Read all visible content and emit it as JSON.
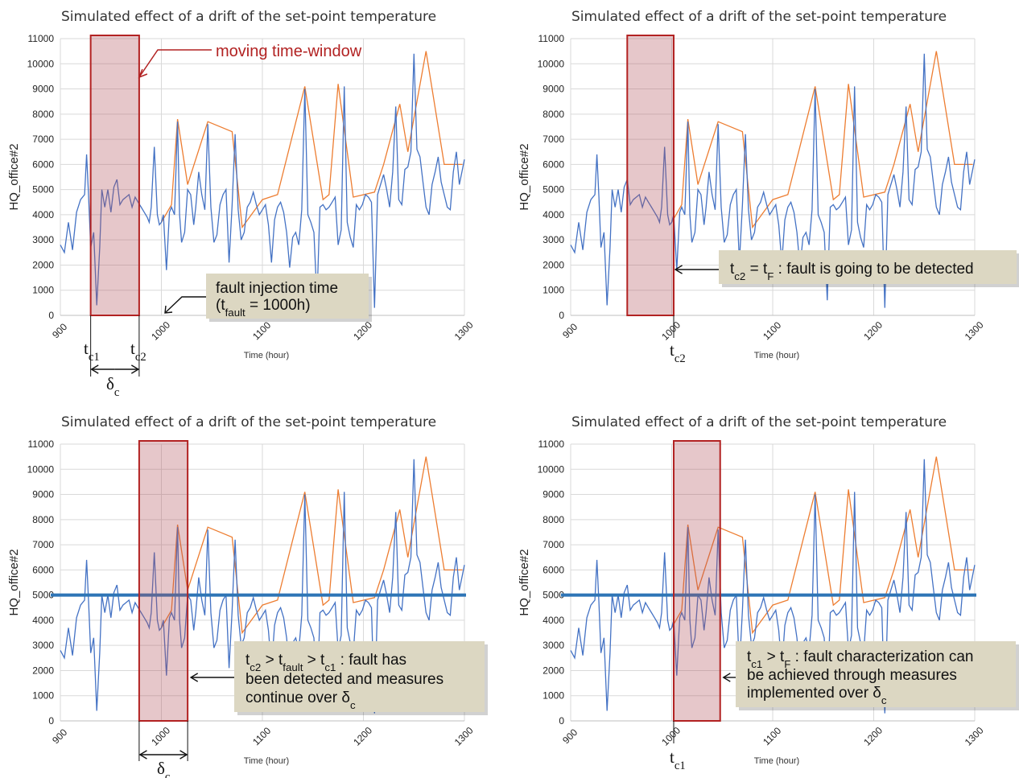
{
  "colors": {
    "baseline": "#4472c4",
    "faulty": "#ed7d31",
    "window_fill": "rgba(178,80,90,0.32)",
    "window_stroke": "#b22222",
    "threshold": "#2e75b6",
    "callout_bg": "#dcd7c2"
  },
  "chart_data": [
    {
      "type": "line",
      "title": "Simulated effect of a drift of the set-point temperature",
      "xlabel": "Time (hour)",
      "ylabel": "HQ_office#2",
      "xlim": [
        900,
        1300
      ],
      "ylim": [
        0,
        11000
      ],
      "x_ticks": [
        "900",
        "1000",
        "1100",
        "1200",
        "1300"
      ],
      "y_ticks": [
        "0",
        "1000",
        "2000",
        "3000",
        "4000",
        "5000",
        "6000",
        "7000",
        "8000",
        "9000",
        "10000",
        "11000"
      ],
      "grid": true,
      "window": [
        930,
        978
      ],
      "threshold": null,
      "series": [
        {
          "x": [
            900,
            904,
            908,
            912,
            916,
            920,
            924,
            926,
            928,
            930,
            933,
            936,
            939,
            941,
            944,
            947,
            950,
            953,
            956,
            959,
            962,
            965,
            968,
            971,
            974,
            977,
            980,
            983,
            986,
            988,
            990,
            993,
            996,
            998,
            1000,
            1002,
            1005,
            1008,
            1010,
            1013,
            1016,
            1018,
            1020,
            1023,
            1026,
            1029,
            1032,
            1034,
            1037,
            1040,
            1043,
            1046,
            1049,
            1052,
            1055,
            1058,
            1061,
            1064,
            1067,
            1070,
            1073,
            1076,
            1079,
            1082,
            1085,
            1088,
            1091,
            1094,
            1097,
            1100,
            1103,
            1106,
            1109,
            1112,
            1115,
            1118,
            1121,
            1124,
            1127,
            1130,
            1133,
            1136,
            1139,
            1142,
            1145,
            1148,
            1151,
            1154,
            1157,
            1160,
            1163,
            1166,
            1169,
            1172,
            1175,
            1178,
            1181,
            1184,
            1187,
            1190,
            1193,
            1196,
            1199,
            1202,
            1205,
            1208,
            1211,
            1214,
            1217,
            1220,
            1223,
            1226,
            1229,
            1232,
            1235,
            1238,
            1241,
            1244,
            1247,
            1250,
            1253,
            1256,
            1259,
            1262,
            1265,
            1268,
            1271,
            1274,
            1277,
            1280,
            1283,
            1286,
            1289,
            1292,
            1295,
            1298,
            1300
          ],
          "y": [
            2800,
            2500,
            3700,
            2600,
            4100,
            4600,
            4800,
            6400,
            4700,
            2700,
            3300,
            400,
            2700,
            5000,
            4300,
            5000,
            4100,
            5100,
            5400,
            4400,
            4600,
            4700,
            4800,
            4300,
            4700,
            4500,
            4300,
            4100,
            3900,
            3700,
            4300,
            6700,
            4000,
            3600,
            3700,
            4000,
            1800,
            4100,
            4300,
            4000,
            7700,
            4000,
            2900,
            3300,
            5000,
            4800,
            3600,
            4300,
            5700,
            4800,
            4200,
            7600,
            4300,
            2900,
            3200,
            4400,
            4800,
            5000,
            2100,
            4400,
            7200,
            4200,
            3000,
            3300,
            4300,
            4500,
            4900,
            4400,
            4000,
            4200,
            4400,
            3600,
            2100,
            3800,
            4300,
            4500,
            4100,
            3300,
            1900,
            3100,
            3300,
            2800,
            4200,
            9000,
            4000,
            3700,
            3300,
            600,
            4300,
            4400,
            4200,
            4300,
            4500,
            4700,
            2800,
            3400,
            9100,
            3700,
            3100,
            2700,
            4400,
            4200,
            4400,
            4800,
            4700,
            4500,
            300,
            4800,
            5200,
            5600,
            5000,
            4300,
            5700,
            8300,
            4600,
            4400,
            5800,
            5900,
            6500,
            10400,
            6600,
            6300,
            5300,
            4300,
            4000,
            5200,
            5700,
            6300,
            5300,
            4800,
            4300,
            4200,
            5700,
            6500,
            5200,
            5800,
            6200
          ]
        },
        {
          "x": [
            1000,
            1010,
            1016,
            1026,
            1046,
            1070,
            1080,
            1100,
            1115,
            1142,
            1160,
            1166,
            1175,
            1190,
            1211,
            1220,
            1236,
            1244,
            1262,
            1280,
            1298
          ],
          "y": [
            3700,
            4400,
            7800,
            5200,
            7700,
            7300,
            3500,
            4600,
            4800,
            9100,
            4600,
            4800,
            9200,
            4700,
            4900,
            6000,
            8400,
            6500,
            10500,
            6000,
            6000
          ]
        }
      ]
    },
    {
      "type": "line",
      "title": "Simulated effect of a drift of the set-point temperature",
      "xlabel": "Time (hour)",
      "ylabel": "HQ_office#2",
      "xlim": [
        900,
        1300
      ],
      "ylim": [
        0,
        11000
      ],
      "x_ticks": [
        "900",
        "1000",
        "1100",
        "1200",
        "1300"
      ],
      "y_ticks": [
        "0",
        "1000",
        "2000",
        "3000",
        "4000",
        "5000",
        "6000",
        "7000",
        "8000",
        "9000",
        "10000",
        "11000"
      ],
      "grid": true,
      "window": [
        956,
        1002
      ],
      "threshold": null
    },
    {
      "type": "line",
      "title": "Simulated effect of a drift of the set-point temperature",
      "xlabel": "Time (hour)",
      "ylabel": "HQ_office#2",
      "xlim": [
        900,
        1300
      ],
      "ylim": [
        0,
        11000
      ],
      "x_ticks": [
        "900",
        "1000",
        "1100",
        "1200",
        "1300"
      ],
      "y_ticks": [
        "0",
        "1000",
        "2000",
        "3000",
        "4000",
        "5000",
        "6000",
        "7000",
        "8000",
        "9000",
        "10000",
        "11000"
      ],
      "grid": true,
      "window": [
        978,
        1026
      ],
      "threshold": 5000
    },
    {
      "type": "line",
      "title": "Simulated effect of a drift of the set-point temperature",
      "xlabel": "Time (hour)",
      "ylabel": "HQ_office#2",
      "xlim": [
        900,
        1300
      ],
      "ylim": [
        0,
        11000
      ],
      "x_ticks": [
        "900",
        "1000",
        "1100",
        "1200",
        "1300"
      ],
      "y_ticks": [
        "0",
        "1000",
        "2000",
        "3000",
        "4000",
        "5000",
        "6000",
        "7000",
        "8000",
        "9000",
        "10000",
        "11000"
      ],
      "grid": true,
      "window": [
        1002,
        1048
      ],
      "threshold": 5000
    }
  ],
  "annotations": {
    "p1_moving_window": "moving time-window",
    "p1_fault_injection_line1": "fault injection time",
    "p1_fault_injection_line2": "(tfault = 1000h)",
    "p1_tc1": "tc1",
    "p1_tc2": "tc2",
    "p1_delta": "δc",
    "p2_callout": "tc2 = tF : fault is going to be detected",
    "p2_tc2": "tc2",
    "p3_callout_line1": "tc2 > tfault > tc1 : fault has",
    "p3_callout_line2": "been detected and measures",
    "p3_callout_line3": "continue over δc",
    "p3_delta": "δc",
    "p4_callout_line1": "tc1 > tF : fault characterization can",
    "p4_callout_line2": "be achieved through measures",
    "p4_callout_line3": "implemented over δc",
    "p4_tc1": "tc1"
  }
}
